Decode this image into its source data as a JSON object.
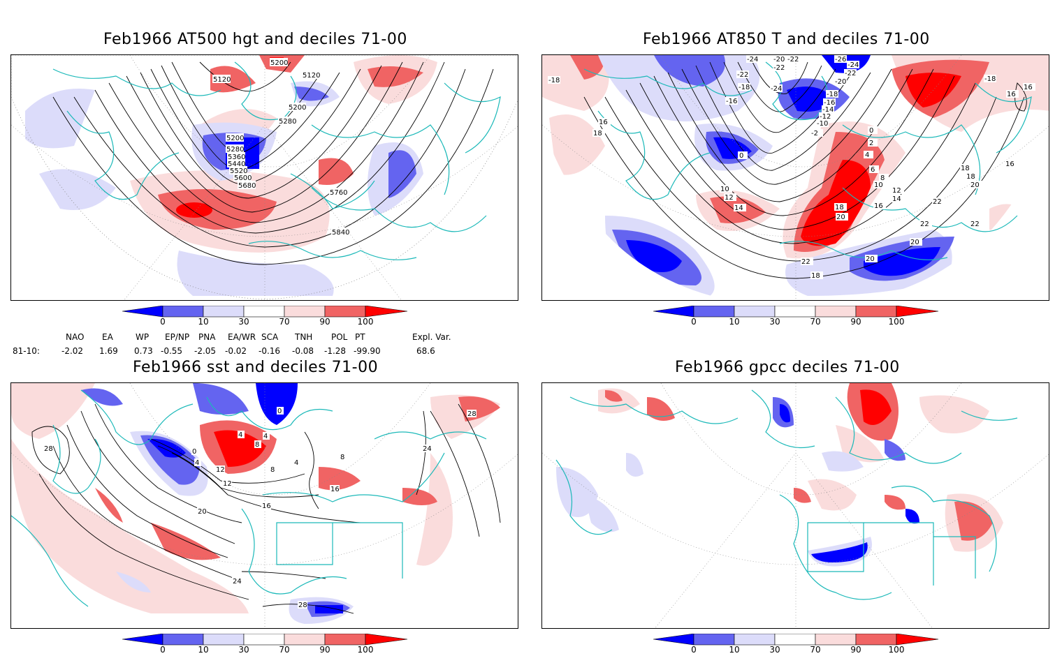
{
  "panels": {
    "tl": {
      "title": "Feb1966 AT500 hgt and deciles 71-00",
      "labels": [
        "5200",
        "5120",
        "5120",
        "5200",
        "5280",
        "5200",
        "5280",
        "5360",
        "5440",
        "5520",
        "5600",
        "5680",
        "5760",
        "5840"
      ]
    },
    "tr": {
      "title": "Feb1966 AT850 T and deciles 71-00",
      "labels": [
        "-24",
        "-20",
        "-22",
        "-26",
        "-22",
        "-24",
        "-22",
        "-20",
        "-18",
        "-22",
        "-24",
        "-18",
        "-16",
        "-14",
        "-12",
        "-10",
        "-16",
        "-18",
        "16",
        "-18",
        "18",
        "16",
        "0",
        "2",
        "4",
        "0",
        "-2",
        "6",
        "8",
        "10",
        "12",
        "10",
        "12",
        "14",
        "14",
        "16",
        "18",
        "20",
        "18",
        "20",
        "16",
        "18",
        "22",
        "22",
        "22",
        "20",
        "20",
        "22",
        "18",
        "16"
      ]
    },
    "bl": {
      "title": "Feb1966 sst and deciles 71-00",
      "labels": [
        "28",
        "0",
        "0",
        "4",
        "4",
        "4",
        "8",
        "8",
        "12",
        "12",
        "16",
        "16",
        "20",
        "24",
        "24",
        "28",
        "28",
        "4",
        "8"
      ]
    },
    "br": {
      "title": "Feb1966 gpcc deciles 71-00",
      "labels": []
    }
  },
  "colorbar": {
    "ticks": [
      "0",
      "10",
      "30",
      "70",
      "90",
      "100"
    ],
    "colors": [
      "#0000ff",
      "#6464f0",
      "#dcdcfa",
      "#ffffff",
      "#fadcdc",
      "#f06464",
      "#ff0000"
    ]
  },
  "indices": {
    "headers": [
      "NAO",
      "EA",
      "WP",
      "EP/NP",
      "PNA",
      "EA/WR",
      "SCA",
      "TNH",
      "POL",
      "PT",
      "Expl. Var."
    ],
    "row_label": "81-10:",
    "values": [
      "-2.02",
      "1.69",
      "0.73",
      "-0.55",
      "-2.05",
      "-0.02",
      "-0.16",
      "-0.08",
      "-1.28",
      "-99.90",
      "68.6"
    ]
  }
}
